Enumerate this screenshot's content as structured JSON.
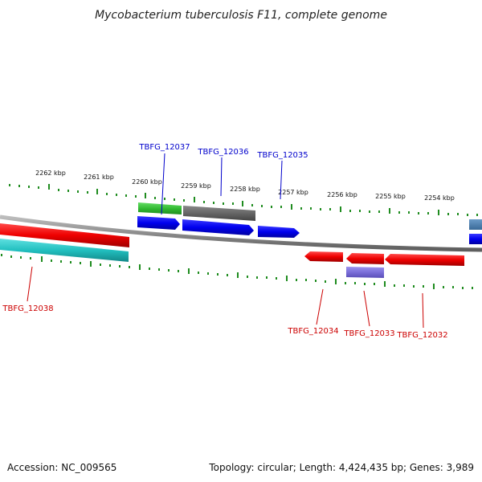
{
  "title": "Mycobacterium tuberculosis F11, complete genome",
  "footer": {
    "accession": "Accession: NC_009565",
    "topology": "Topology: circular; Length: 4,424,435 bp; Genes: 3,989"
  },
  "colors": {
    "backbone": "#8c8c8c",
    "ticks": "#1f8c1f",
    "forward_label": "#0000cc",
    "reverse_label": "#cc0000"
  },
  "scale_labels": [
    "2262 kbp",
    "2261 kbp",
    "2260 kbp",
    "2259 kbp",
    "2258 kbp",
    "2257 kbp",
    "2256 kbp",
    "2255 kbp",
    "2254 kbp"
  ],
  "gene_labels": {
    "TBFG_12037": "TBFG_12037",
    "TBFG_12036": "TBFG_12036",
    "TBFG_12035": "TBFG_12035",
    "TBFG_12038": "TBFG_12038",
    "TBFG_12034": "TBFG_12034",
    "TBFG_12033": "TBFG_12033",
    "TBFG_12032": "TBFG_12032"
  }
}
